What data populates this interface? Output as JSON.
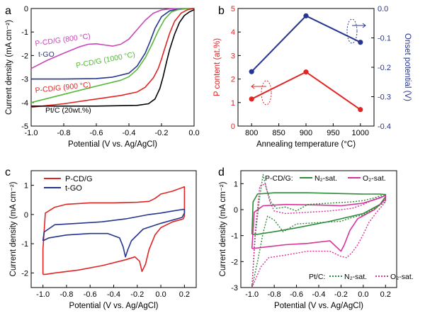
{
  "colors": {
    "black": "#000000",
    "red": "#e02424",
    "blue": "#26358f",
    "green": "#56b83a",
    "magenta": "#c948b6",
    "pink": "#d8329a",
    "darkgreen": "#2e8b3a"
  },
  "chart_data": [
    {
      "panel": "a",
      "type": "line",
      "xlabel": "Potential (V vs. Ag/AgCl)",
      "ylabel": "Current density (mA cm⁻²)",
      "xlim": [
        -1.0,
        0.0
      ],
      "ylim": [
        -5,
        0
      ],
      "xticks": [
        -1.0,
        -0.8,
        -0.6,
        -0.4,
        -0.2,
        0.0
      ],
      "xtick_labels": [
        "-1.0",
        "-0.8",
        "-0.6",
        "-0.4",
        "-0.2",
        "0.0"
      ],
      "yticks": [
        -5,
        -4,
        -3,
        -2,
        -1,
        0
      ],
      "ytick_labels": [
        "-5",
        "-4",
        "-3",
        "-2",
        "-1",
        "0"
      ],
      "series": [
        {
          "name": "P-CD/G (800 °C)",
          "color": "magenta",
          "x": [
            -1.0,
            -0.9,
            -0.8,
            -0.7,
            -0.65,
            -0.6,
            -0.55,
            -0.5,
            -0.45,
            -0.4,
            -0.35,
            -0.3,
            -0.25,
            -0.2,
            -0.15,
            -0.1,
            -0.05,
            0.0
          ],
          "y": [
            -2.55,
            -2.2,
            -1.9,
            -1.62,
            -1.52,
            -1.5,
            -1.55,
            -1.6,
            -1.52,
            -1.3,
            -0.9,
            -0.5,
            -0.2,
            -0.06,
            -0.02,
            -0.01,
            0.0,
            0.0
          ]
        },
        {
          "name": "t-GO",
          "color": "blue",
          "x": [
            -1.0,
            -0.8,
            -0.6,
            -0.5,
            -0.4,
            -0.35,
            -0.3,
            -0.27,
            -0.24,
            -0.2,
            -0.15,
            -0.1,
            -0.05,
            0.0
          ],
          "y": [
            -3.0,
            -3.0,
            -2.98,
            -2.92,
            -2.75,
            -2.45,
            -1.9,
            -1.4,
            -0.85,
            -0.35,
            -0.1,
            -0.03,
            -0.01,
            0.0
          ]
        },
        {
          "name": "P-CD/G (1000 °C)",
          "color": "green",
          "x": [
            -1.0,
            -0.8,
            -0.6,
            -0.45,
            -0.4,
            -0.35,
            -0.3,
            -0.26,
            -0.22,
            -0.18,
            -0.14,
            -0.1,
            -0.05,
            0.0
          ],
          "y": [
            -4.0,
            -3.65,
            -3.3,
            -3.05,
            -2.9,
            -2.6,
            -2.1,
            -1.55,
            -0.95,
            -0.45,
            -0.15,
            -0.05,
            -0.01,
            0.0
          ]
        },
        {
          "name": "P-CD/G (900 °C)",
          "color": "red",
          "x": [
            -1.0,
            -0.8,
            -0.6,
            -0.45,
            -0.35,
            -0.3,
            -0.25,
            -0.22,
            -0.2,
            -0.18,
            -0.15,
            -0.12,
            -0.08,
            -0.04,
            0.0
          ],
          "y": [
            -4.2,
            -4.05,
            -3.85,
            -3.7,
            -3.55,
            -3.35,
            -2.95,
            -2.55,
            -2.15,
            -1.7,
            -1.05,
            -0.55,
            -0.2,
            -0.05,
            0.0
          ]
        },
        {
          "name": "Pt/C (20wt.%)",
          "color": "black",
          "x": [
            -1.0,
            -0.6,
            -0.35,
            -0.28,
            -0.24,
            -0.21,
            -0.19,
            -0.17,
            -0.15,
            -0.12,
            -0.09,
            -0.06,
            -0.03,
            0.0
          ],
          "y": [
            -4.15,
            -4.15,
            -4.12,
            -4.05,
            -3.85,
            -3.4,
            -2.9,
            -2.3,
            -1.75,
            -1.1,
            -0.6,
            -0.3,
            -0.15,
            -0.05
          ]
        }
      ],
      "labels": [
        {
          "text": "P-CD/G (800 °C)",
          "color": "magenta"
        },
        {
          "text": "t-GO",
          "color": "blue"
        },
        {
          "text": "P-CD/G (1000 °C)",
          "color": "green"
        },
        {
          "text": "P-CD/G (900 °C)",
          "color": "red"
        },
        {
          "text": "Pt/C (20wt.%)",
          "color": "black"
        }
      ]
    },
    {
      "panel": "b",
      "type": "line",
      "xlabel": "Annealing temperature (°C)",
      "ylabel": "P content (at.%)",
      "ylabel_right": "Onset potential (V)",
      "xlim": [
        775,
        1025
      ],
      "xticks": [
        800,
        850,
        900,
        950,
        1000
      ],
      "xtick_labels": [
        "800",
        "850",
        "900",
        "950",
        "1000"
      ],
      "ylim": [
        0,
        5
      ],
      "yticks": [
        0,
        1,
        2,
        3,
        4,
        5
      ],
      "ytick_labels": [
        "0",
        "1",
        "2",
        "3",
        "4",
        "5"
      ],
      "ylim_right": [
        -0.4,
        0.0
      ],
      "yticks_right": [
        -0.4,
        -0.3,
        -0.2,
        -0.1,
        0.0
      ],
      "ytick_labels_right": [
        "-0.4",
        "-0.3",
        "-0.2",
        "-0.1",
        "0.0"
      ],
      "series": [
        {
          "color": "red",
          "axis": "left",
          "x": [
            800,
            900,
            1000
          ],
          "y": [
            1.15,
            2.3,
            0.7
          ]
        },
        {
          "color": "blue",
          "axis": "right",
          "x": [
            800,
            900,
            1000
          ],
          "y": [
            -0.215,
            -0.025,
            -0.115
          ]
        }
      ]
    },
    {
      "panel": "c",
      "type": "line",
      "xlabel": "Potential (V vs. Ag/AgCl)",
      "ylabel": "Current density (mA cm⁻²)",
      "xlim": [
        -1.1,
        0.3
      ],
      "ylim": [
        -2.5,
        1.5
      ],
      "xticks": [
        -1.0,
        -0.8,
        -0.6,
        -0.4,
        -0.2,
        0.0,
        0.2
      ],
      "xtick_labels": [
        "-1.0",
        "-0.8",
        "-0.6",
        "-0.4",
        "-0.2",
        "0.0",
        "0.2"
      ],
      "yticks": [
        -2,
        -1,
        0,
        1
      ],
      "ytick_labels": [
        "-2",
        "-1",
        "0",
        "1"
      ],
      "series": [
        {
          "name": "P-CD/G",
          "color": "red",
          "x": [
            -1.0,
            -1.0,
            -0.98,
            -0.9,
            -0.8,
            -0.6,
            -0.4,
            -0.2,
            -0.1,
            -0.05,
            0.0,
            0.1,
            0.2,
            0.2,
            0.19,
            0.1,
            0.0,
            -0.05,
            -0.1,
            -0.13,
            -0.16,
            -0.18,
            -0.22,
            -0.3,
            -0.5,
            -0.7,
            -0.9,
            -0.98,
            -1.0
          ],
          "y": [
            -2.05,
            -1.2,
            0.05,
            0.25,
            0.35,
            0.4,
            0.4,
            0.42,
            0.45,
            0.55,
            0.7,
            0.8,
            0.95,
            -0.05,
            -0.15,
            -0.25,
            -0.45,
            -0.7,
            -1.2,
            -1.7,
            -1.95,
            -1.6,
            -1.45,
            -1.55,
            -1.75,
            -1.9,
            -2.0,
            -2.05,
            -2.05
          ]
        },
        {
          "name": "t-GO",
          "color": "blue",
          "x": [
            -1.0,
            -0.99,
            -0.9,
            -0.7,
            -0.5,
            -0.3,
            -0.1,
            0.0,
            0.1,
            0.2,
            0.2,
            0.18,
            0.0,
            -0.15,
            -0.25,
            -0.28,
            -0.3,
            -0.32,
            -0.35,
            -0.45,
            -0.6,
            -0.8,
            -0.95,
            -1.0
          ],
          "y": [
            -0.9,
            -0.6,
            -0.35,
            -0.3,
            -0.25,
            -0.15,
            0.0,
            0.05,
            0.12,
            0.18,
            0.05,
            -0.1,
            -0.3,
            -0.5,
            -0.9,
            -1.2,
            -1.45,
            -1.1,
            -0.8,
            -0.65,
            -0.65,
            -0.7,
            -0.8,
            -0.9
          ]
        }
      ],
      "legend": [
        {
          "name": "P-CD/G",
          "color": "red"
        },
        {
          "name": "t-GO",
          "color": "blue"
        }
      ]
    },
    {
      "panel": "d",
      "type": "line",
      "xlabel": "Potential (V vs. Ag/AgCl)",
      "ylabel": "Current density (mA cm⁻²)",
      "xlim": [
        -1.1,
        0.3
      ],
      "ylim": [
        -3,
        1.5
      ],
      "xticks": [
        -1.0,
        -0.8,
        -0.6,
        -0.4,
        -0.2,
        0.0,
        0.2
      ],
      "xtick_labels": [
        "-1.0",
        "-0.8",
        "-0.6",
        "-0.4",
        "-0.2",
        "0.0",
        "0.2"
      ],
      "yticks": [
        -3,
        -2,
        -1,
        0,
        1
      ],
      "ytick_labels": [
        "-3",
        "-2",
        "-1",
        "0",
        "1"
      ],
      "series": [
        {
          "name": "P-CD/G N₂-sat.",
          "color": "darkgreen",
          "dash": "solid",
          "x": [
            -1.0,
            -0.99,
            -0.95,
            -0.8,
            -0.5,
            -0.2,
            0.0,
            0.15,
            0.2,
            0.2,
            0.15,
            0.0,
            -0.3,
            -0.6,
            -0.8,
            -0.95,
            -1.0
          ],
          "y": [
            -0.95,
            0.3,
            0.6,
            0.65,
            0.65,
            0.62,
            0.6,
            0.6,
            0.58,
            0.5,
            0.2,
            -0.15,
            -0.45,
            -0.7,
            -0.85,
            -0.95,
            -0.95
          ]
        },
        {
          "name": "P-CD/G O₂-sat.",
          "color": "pink",
          "dash": "solid",
          "x": [
            -1.0,
            -0.98,
            -0.9,
            -0.7,
            -0.4,
            -0.2,
            0.0,
            0.15,
            0.2,
            0.2,
            0.1,
            -0.05,
            -0.12,
            -0.17,
            -0.2,
            -0.3,
            -0.5,
            -0.7,
            -0.9,
            -1.0
          ],
          "y": [
            -1.5,
            -0.1,
            0.15,
            0.2,
            0.18,
            0.15,
            0.25,
            0.45,
            0.55,
            0.4,
            0.0,
            -0.35,
            -0.8,
            -1.35,
            -1.6,
            -1.2,
            -1.3,
            -1.35,
            -1.45,
            -1.5
          ]
        },
        {
          "name": "Pt/C N₂-sat.",
          "color": "darkgreen",
          "dash": "dotted",
          "x": [
            -1.0,
            -0.97,
            -0.93,
            -0.9,
            -0.87,
            -0.83,
            -0.78,
            -0.7,
            -0.6,
            -0.5,
            -0.3,
            -0.1,
            0.0,
            0.1,
            0.2,
            0.2,
            0.1,
            0.0,
            -0.1,
            -0.2,
            -0.4,
            -0.6,
            -0.72,
            -0.8,
            -0.86,
            -0.9,
            -0.95,
            -1.0
          ],
          "y": [
            -3.0,
            -1.0,
            0.5,
            1.35,
            0.8,
            0.3,
            0.05,
            0.1,
            -0.05,
            0.2,
            0.25,
            0.3,
            0.35,
            0.45,
            0.6,
            0.3,
            0.05,
            -0.2,
            -0.3,
            -0.45,
            -0.5,
            -0.55,
            -0.85,
            -0.4,
            -0.25,
            -0.9,
            -2.0,
            -3.0
          ]
        },
        {
          "name": "Pt/C O₂-sat.",
          "color": "pink",
          "dash": "dotted",
          "x": [
            -1.0,
            -0.97,
            -0.93,
            -0.88,
            -0.84,
            -0.8,
            -0.7,
            -0.5,
            -0.3,
            -0.2,
            -0.1,
            0.0,
            0.1,
            0.2,
            0.2,
            0.12,
            0.05,
            0.0,
            -0.05,
            -0.1,
            -0.15,
            -0.2,
            -0.3,
            -0.5,
            -0.7,
            -0.85,
            -0.92,
            -0.97,
            -1.0
          ],
          "y": [
            -3.0,
            -0.8,
            0.9,
            1.0,
            0.3,
            -0.05,
            -0.15,
            -0.1,
            -0.05,
            0.0,
            0.05,
            0.2,
            0.4,
            0.55,
            0.3,
            -0.1,
            -0.5,
            -0.95,
            -1.35,
            -1.65,
            -1.85,
            -1.8,
            -1.6,
            -1.6,
            -1.75,
            -1.85,
            -2.2,
            -2.7,
            -3.0
          ]
        }
      ],
      "legend_row1_label": "P-CD/G:",
      "legend_row2_label": "Pt/C:",
      "legend": [
        {
          "label": "N₂-sat.",
          "color": "darkgreen",
          "dash": "solid",
          "row": 1
        },
        {
          "label": "O₂-sat.",
          "color": "pink",
          "dash": "solid",
          "row": 1
        },
        {
          "label": "N₂-sat.",
          "color": "darkgreen",
          "dash": "dotted",
          "row": 2
        },
        {
          "label": "O₂-sat.",
          "color": "pink",
          "dash": "dotted",
          "row": 2
        }
      ]
    }
  ],
  "panel_letters": [
    "a",
    "b",
    "c",
    "d"
  ]
}
